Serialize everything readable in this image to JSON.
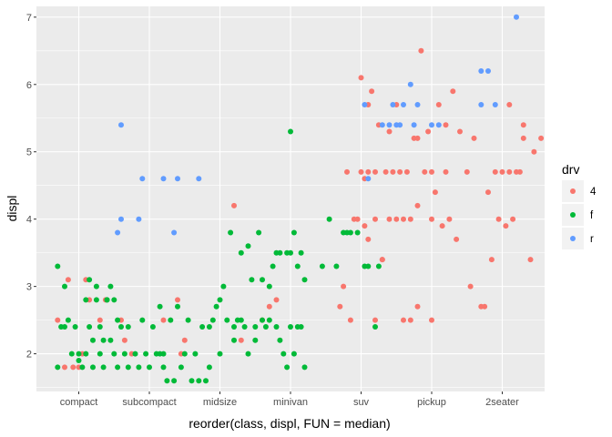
{
  "chart_data": {
    "type": "scatter",
    "title": "",
    "xlabel": "reorder(class, displ, FUN = median)",
    "ylabel": "displ",
    "categories": [
      "compact",
      "subcompact",
      "midsize",
      "minivan",
      "suv",
      "pickup",
      "2seater"
    ],
    "y_ticks": [
      2,
      3,
      4,
      5,
      6,
      7
    ],
    "ylim": [
      1.44,
      7.16
    ],
    "grid": true,
    "legend": {
      "title": "drv",
      "position": "right",
      "items": [
        {
          "key": "4",
          "label": "4",
          "color": "#F8766D"
        },
        {
          "key": "f",
          "label": "f",
          "color": "#00BA38"
        },
        {
          "key": "r",
          "label": "r",
          "color": "#619CFF"
        }
      ]
    },
    "series": [
      {
        "key": "4",
        "color": "#F8766D",
        "points": [
          [
            0.7,
            2.5
          ],
          [
            0.8,
            1.8
          ],
          [
            0.85,
            3.1
          ],
          [
            0.92,
            1.8
          ],
          [
            1.0,
            1.8
          ],
          [
            1.05,
            2.0
          ],
          [
            1.1,
            3.1
          ],
          [
            1.15,
            2.8
          ],
          [
            1.3,
            2.5
          ],
          [
            1.38,
            2.8
          ],
          [
            1.6,
            2.5
          ],
          [
            1.65,
            2.2
          ],
          [
            1.75,
            2.0
          ],
          [
            2.2,
            2.5
          ],
          [
            2.4,
            2.8
          ],
          [
            2.45,
            2.0
          ],
          [
            2.5,
            2.2
          ],
          [
            3.2,
            4.2
          ],
          [
            3.3,
            2.2
          ],
          [
            3.6,
            2.5
          ],
          [
            3.7,
            2.7
          ],
          [
            3.8,
            2.8
          ],
          [
            4.7,
            2.7
          ],
          [
            4.75,
            3.0
          ],
          [
            4.8,
            4.7
          ],
          [
            4.85,
            2.5
          ],
          [
            4.9,
            4.0
          ],
          [
            4.95,
            4.0
          ],
          [
            5.0,
            4.7
          ],
          [
            5.0,
            6.1
          ],
          [
            5.05,
            3.9
          ],
          [
            5.05,
            4.6
          ],
          [
            5.1,
            3.7
          ],
          [
            5.1,
            4.7
          ],
          [
            5.1,
            5.7
          ],
          [
            5.15,
            5.9
          ],
          [
            5.2,
            2.5
          ],
          [
            5.2,
            4.0
          ],
          [
            5.2,
            4.7
          ],
          [
            5.25,
            5.4
          ],
          [
            5.3,
            3.4
          ],
          [
            5.3,
            3.4
          ],
          [
            5.35,
            4.7
          ],
          [
            5.4,
            4.0
          ],
          [
            5.4,
            5.3
          ],
          [
            5.45,
            4.7
          ],
          [
            5.5,
            4.0
          ],
          [
            5.5,
            5.7
          ],
          [
            5.55,
            4.7
          ],
          [
            5.6,
            2.5
          ],
          [
            5.6,
            4.0
          ],
          [
            5.65,
            4.7
          ],
          [
            5.7,
            2.5
          ],
          [
            5.7,
            4.0
          ],
          [
            5.75,
            5.2
          ],
          [
            5.8,
            2.7
          ],
          [
            5.8,
            4.2
          ],
          [
            5.8,
            5.2
          ],
          [
            5.85,
            6.5
          ],
          [
            5.9,
            4.7
          ],
          [
            5.95,
            5.3
          ],
          [
            6.0,
            2.5
          ],
          [
            6.0,
            4.0
          ],
          [
            6.0,
            4.7
          ],
          [
            6.05,
            4.4
          ],
          [
            6.1,
            5.7
          ],
          [
            6.15,
            3.9
          ],
          [
            6.2,
            4.7
          ],
          [
            6.2,
            5.4
          ],
          [
            6.25,
            4.0
          ],
          [
            6.3,
            5.9
          ],
          [
            6.35,
            3.7
          ],
          [
            6.4,
            5.3
          ],
          [
            6.5,
            4.7
          ],
          [
            6.55,
            3.0
          ],
          [
            6.6,
            5.2
          ],
          [
            6.7,
            2.7
          ],
          [
            6.75,
            2.7
          ],
          [
            6.8,
            4.4
          ],
          [
            6.85,
            3.4
          ],
          [
            6.9,
            4.7
          ],
          [
            6.95,
            4.0
          ],
          [
            7.0,
            4.7
          ],
          [
            7.05,
            3.9
          ],
          [
            7.1,
            4.7
          ],
          [
            7.1,
            5.7
          ],
          [
            7.15,
            4.0
          ],
          [
            7.2,
            4.7
          ],
          [
            7.25,
            4.7
          ],
          [
            7.3,
            5.2
          ],
          [
            7.3,
            5.4
          ],
          [
            7.4,
            3.4
          ],
          [
            7.45,
            5.0
          ],
          [
            7.55,
            5.2
          ]
        ]
      },
      {
        "key": "f",
        "color": "#00BA38",
        "points": [
          [
            0.7,
            3.3
          ],
          [
            0.7,
            1.8
          ],
          [
            0.75,
            2.4
          ],
          [
            0.8,
            3.0
          ],
          [
            0.8,
            2.4
          ],
          [
            0.85,
            2.5
          ],
          [
            0.9,
            2.0
          ],
          [
            0.95,
            2.4
          ],
          [
            1.0,
            2.0
          ],
          [
            1.0,
            1.9
          ],
          [
            1.05,
            1.8
          ],
          [
            1.1,
            2.8
          ],
          [
            1.1,
            2.0
          ],
          [
            1.15,
            3.1
          ],
          [
            1.15,
            2.4
          ],
          [
            1.2,
            2.2
          ],
          [
            1.2,
            1.8
          ],
          [
            1.25,
            3.0
          ],
          [
            1.25,
            2.8
          ],
          [
            1.3,
            2.4
          ],
          [
            1.3,
            2.0
          ],
          [
            1.35,
            2.2
          ],
          [
            1.35,
            1.8
          ],
          [
            1.4,
            2.8
          ],
          [
            1.4,
            2.8
          ],
          [
            1.45,
            3.0
          ],
          [
            1.45,
            2.2
          ],
          [
            1.5,
            2.8
          ],
          [
            1.5,
            2.0
          ],
          [
            1.55,
            1.8
          ],
          [
            1.55,
            2.5
          ],
          [
            1.6,
            2.4
          ],
          [
            1.65,
            2.0
          ],
          [
            1.7,
            2.4
          ],
          [
            1.7,
            1.8
          ],
          [
            1.8,
            2.0
          ],
          [
            1.85,
            1.8
          ],
          [
            1.9,
            2.5
          ],
          [
            1.95,
            2.0
          ],
          [
            2.0,
            1.8
          ],
          [
            2.05,
            2.4
          ],
          [
            2.1,
            2.0
          ],
          [
            2.15,
            2.7
          ],
          [
            2.15,
            2.0
          ],
          [
            2.2,
            1.8
          ],
          [
            2.2,
            2.0
          ],
          [
            2.25,
            1.6
          ],
          [
            2.3,
            2.5
          ],
          [
            2.35,
            1.6
          ],
          [
            2.4,
            2.7
          ],
          [
            2.45,
            1.8
          ],
          [
            2.5,
            2.0
          ],
          [
            2.55,
            2.5
          ],
          [
            2.6,
            1.6
          ],
          [
            2.65,
            2.0
          ],
          [
            2.7,
            1.6
          ],
          [
            2.75,
            2.4
          ],
          [
            2.8,
            1.6
          ],
          [
            2.85,
            2.4
          ],
          [
            2.85,
            1.8
          ],
          [
            2.9,
            2.5
          ],
          [
            2.95,
            2.7
          ],
          [
            3.0,
            2.8
          ],
          [
            3.0,
            2.0
          ],
          [
            3.05,
            3.0
          ],
          [
            3.1,
            2.5
          ],
          [
            3.15,
            3.8
          ],
          [
            3.2,
            2.4
          ],
          [
            3.2,
            2.2
          ],
          [
            3.25,
            2.5
          ],
          [
            3.3,
            3.5
          ],
          [
            3.3,
            2.5
          ],
          [
            3.35,
            2.4
          ],
          [
            3.4,
            3.6
          ],
          [
            3.4,
            2.0
          ],
          [
            3.45,
            3.1
          ],
          [
            3.5,
            2.4
          ],
          [
            3.5,
            2.2
          ],
          [
            3.55,
            3.8
          ],
          [
            3.6,
            3.1
          ],
          [
            3.6,
            2.5
          ],
          [
            3.65,
            2.4
          ],
          [
            3.7,
            3.0
          ],
          [
            3.7,
            2.5
          ],
          [
            3.75,
            3.3
          ],
          [
            3.8,
            3.5
          ],
          [
            3.8,
            2.4
          ],
          [
            3.85,
            3.5
          ],
          [
            3.85,
            2.2
          ],
          [
            3.9,
            2.0
          ],
          [
            3.95,
            3.5
          ],
          [
            3.95,
            1.8
          ],
          [
            4.0,
            3.5
          ],
          [
            4.0,
            2.4
          ],
          [
            4.05,
            3.8
          ],
          [
            4.05,
            2.0
          ],
          [
            4.1,
            3.3
          ],
          [
            4.1,
            2.4
          ],
          [
            4.15,
            3.5
          ],
          [
            4.15,
            2.4
          ],
          [
            4.2,
            3.1
          ],
          [
            4.2,
            1.8
          ],
          [
            4.0,
            5.3
          ],
          [
            4.45,
            3.3
          ],
          [
            4.55,
            4.0
          ],
          [
            4.65,
            3.3
          ],
          [
            4.75,
            3.8
          ],
          [
            4.8,
            3.8
          ],
          [
            4.85,
            3.8
          ],
          [
            4.95,
            3.8
          ],
          [
            5.05,
            3.3
          ],
          [
            5.1,
            3.3
          ],
          [
            5.2,
            2.4
          ],
          [
            5.25,
            3.3
          ]
        ]
      },
      {
        "key": "r",
        "color": "#619CFF",
        "points": [
          [
            1.6,
            5.4
          ],
          [
            1.6,
            4.0
          ],
          [
            1.55,
            3.8
          ],
          [
            1.85,
            4.0
          ],
          [
            1.9,
            4.6
          ],
          [
            2.2,
            4.6
          ],
          [
            2.35,
            3.8
          ],
          [
            2.4,
            4.6
          ],
          [
            2.7,
            4.6
          ],
          [
            5.05,
            5.7
          ],
          [
            5.1,
            4.6
          ],
          [
            5.3,
            5.4
          ],
          [
            5.4,
            5.4
          ],
          [
            5.45,
            5.7
          ],
          [
            5.5,
            5.4
          ],
          [
            5.55,
            5.4
          ],
          [
            5.6,
            5.7
          ],
          [
            5.7,
            6.0
          ],
          [
            5.75,
            5.4
          ],
          [
            5.8,
            5.7
          ],
          [
            6.0,
            5.4
          ],
          [
            6.1,
            5.4
          ],
          [
            6.7,
            6.2
          ],
          [
            6.7,
            5.7
          ],
          [
            6.8,
            6.2
          ],
          [
            6.9,
            5.7
          ],
          [
            7.2,
            7.0
          ]
        ]
      }
    ]
  }
}
